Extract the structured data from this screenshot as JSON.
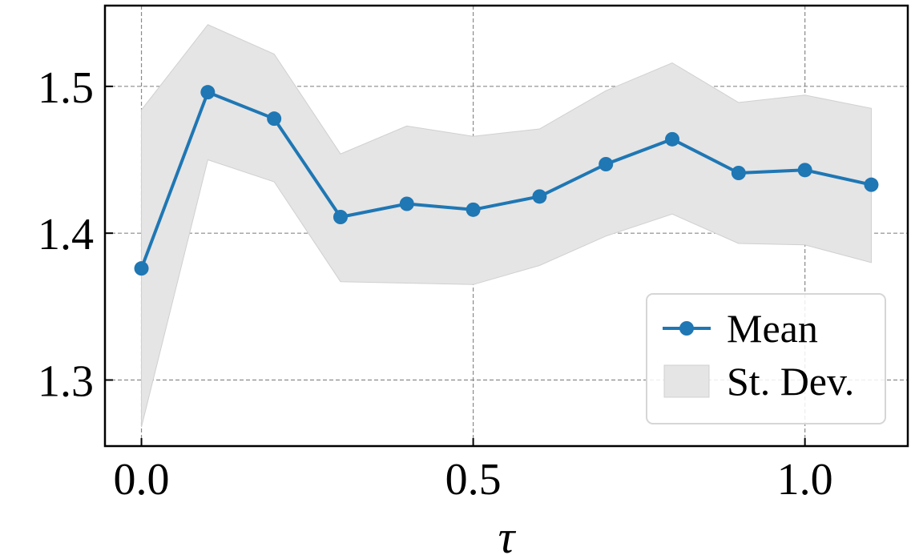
{
  "chart_data": {
    "type": "line",
    "title": "",
    "xlabel": "τ",
    "ylabel": "",
    "xlim": [
      -0.055,
      1.155
    ],
    "ylim": [
      1.255,
      1.555
    ],
    "x_ticks": [
      0.0,
      0.5,
      1.0
    ],
    "x_tick_labels": [
      "0.0",
      "0.5",
      "1.0"
    ],
    "y_ticks": [
      1.3,
      1.4,
      1.5
    ],
    "y_tick_labels": [
      "1.3",
      "1.4",
      "1.5"
    ],
    "grid": true,
    "legend_position": "lower-right",
    "x": [
      0.0,
      0.1,
      0.2,
      0.3,
      0.4,
      0.5,
      0.6,
      0.7,
      0.8,
      0.9,
      1.0,
      1.1
    ],
    "series": [
      {
        "name": "Mean",
        "kind": "line-with-markers",
        "color": "#1f77b4",
        "values": [
          1.376,
          1.496,
          1.478,
          1.411,
          1.42,
          1.416,
          1.425,
          1.447,
          1.464,
          1.441,
          1.443,
          1.433
        ]
      },
      {
        "name": "St. Dev.",
        "kind": "band",
        "color": "#d9d9d9",
        "lower": [
          1.268,
          1.45,
          1.435,
          1.367,
          1.366,
          1.365,
          1.378,
          1.398,
          1.413,
          1.393,
          1.392,
          1.38
        ],
        "upper": [
          1.484,
          1.542,
          1.522,
          1.454,
          1.473,
          1.466,
          1.471,
          1.497,
          1.516,
          1.489,
          1.494,
          1.485
        ]
      }
    ]
  }
}
